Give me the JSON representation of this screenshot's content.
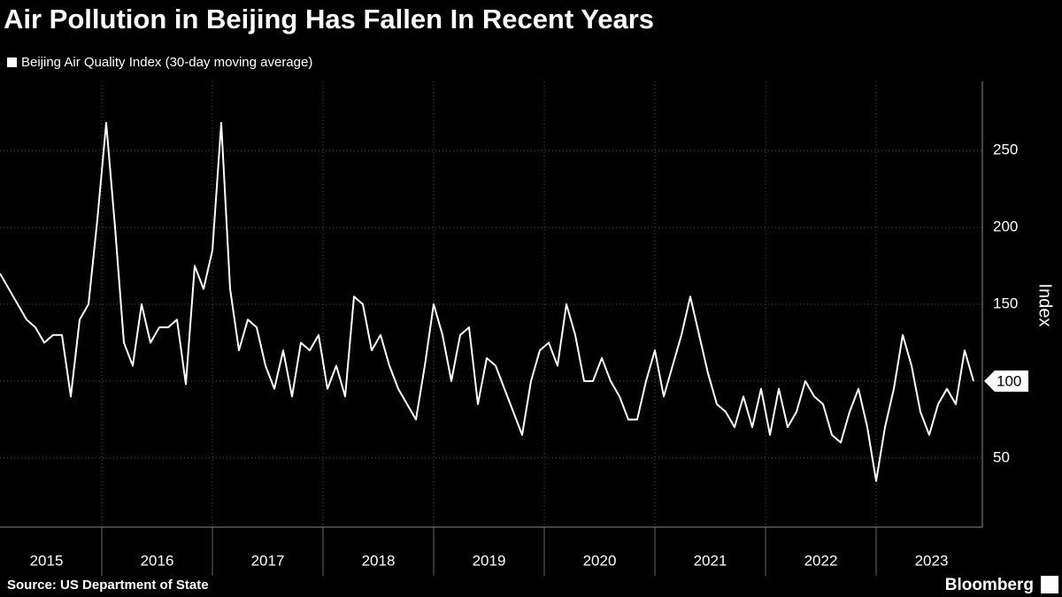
{
  "chart_data": {
    "type": "line",
    "title": "Air Pollution in Beijing Has Fallen In Recent Years",
    "y_label": "Index",
    "source": "Source: US Department of State",
    "brand": "Bloomberg",
    "x": [
      2015.08,
      2015.16,
      2015.24,
      2015.32,
      2015.4,
      2015.48,
      2015.56,
      2015.64,
      2015.72,
      2015.8,
      2015.88,
      2015.96,
      2016.04,
      2016.12,
      2016.2,
      2016.28,
      2016.36,
      2016.44,
      2016.52,
      2016.6,
      2016.68,
      2016.76,
      2016.84,
      2016.92,
      2017.0,
      2017.08,
      2017.16,
      2017.24,
      2017.32,
      2017.4,
      2017.48,
      2017.56,
      2017.64,
      2017.72,
      2017.8,
      2017.88,
      2017.96,
      2018.04,
      2018.12,
      2018.2,
      2018.28,
      2018.36,
      2018.44,
      2018.52,
      2018.6,
      2018.68,
      2018.76,
      2018.84,
      2018.92,
      2019.0,
      2019.08,
      2019.16,
      2019.24,
      2019.32,
      2019.4,
      2019.48,
      2019.56,
      2019.64,
      2019.72,
      2019.8,
      2019.88,
      2019.96,
      2020.04,
      2020.12,
      2020.2,
      2020.28,
      2020.36,
      2020.44,
      2020.52,
      2020.6,
      2020.68,
      2020.76,
      2020.84,
      2020.92,
      2021.0,
      2021.08,
      2021.16,
      2021.24,
      2021.32,
      2021.4,
      2021.48,
      2021.56,
      2021.64,
      2021.72,
      2021.8,
      2021.88,
      2021.96,
      2022.04,
      2022.12,
      2022.2,
      2022.28,
      2022.36,
      2022.44,
      2022.52,
      2022.6,
      2022.68,
      2022.76,
      2022.84,
      2022.92,
      2023.0,
      2023.08,
      2023.16,
      2023.24,
      2023.32,
      2023.4,
      2023.48,
      2023.56,
      2023.64,
      2023.72,
      2023.8,
      2023.88
    ],
    "series": [
      {
        "name": "Beijing Air Quality Index (30-day moving average)",
        "color": "#ffffff",
        "values": [
          170,
          160,
          150,
          140,
          135,
          125,
          130,
          130,
          90,
          140,
          150,
          205,
          268,
          200,
          125,
          110,
          150,
          125,
          135,
          135,
          140,
          98,
          175,
          160,
          185,
          268,
          160,
          120,
          140,
          135,
          110,
          95,
          120,
          90,
          125,
          120,
          130,
          95,
          110,
          90,
          155,
          150,
          120,
          130,
          110,
          95,
          85,
          75,
          110,
          150,
          130,
          100,
          130,
          135,
          85,
          115,
          110,
          95,
          80,
          65,
          100,
          120,
          125,
          110,
          150,
          130,
          100,
          100,
          115,
          100,
          90,
          75,
          75,
          100,
          120,
          90,
          110,
          130,
          155,
          130,
          105,
          85,
          80,
          70,
          90,
          70,
          95,
          65,
          95,
          70,
          80,
          100,
          90,
          85,
          65,
          60,
          80,
          95,
          70,
          35,
          70,
          95,
          130,
          110,
          80,
          65,
          85,
          95,
          85,
          120,
          100
        ]
      }
    ],
    "xlim": [
      2015.08,
      2023.96
    ],
    "xticks": [
      2015,
      2016,
      2017,
      2018,
      2019,
      2020,
      2021,
      2022,
      2023
    ],
    "ylim": [
      5,
      295
    ],
    "yticks": [
      50,
      100,
      150,
      200,
      250
    ],
    "grid": true
  }
}
